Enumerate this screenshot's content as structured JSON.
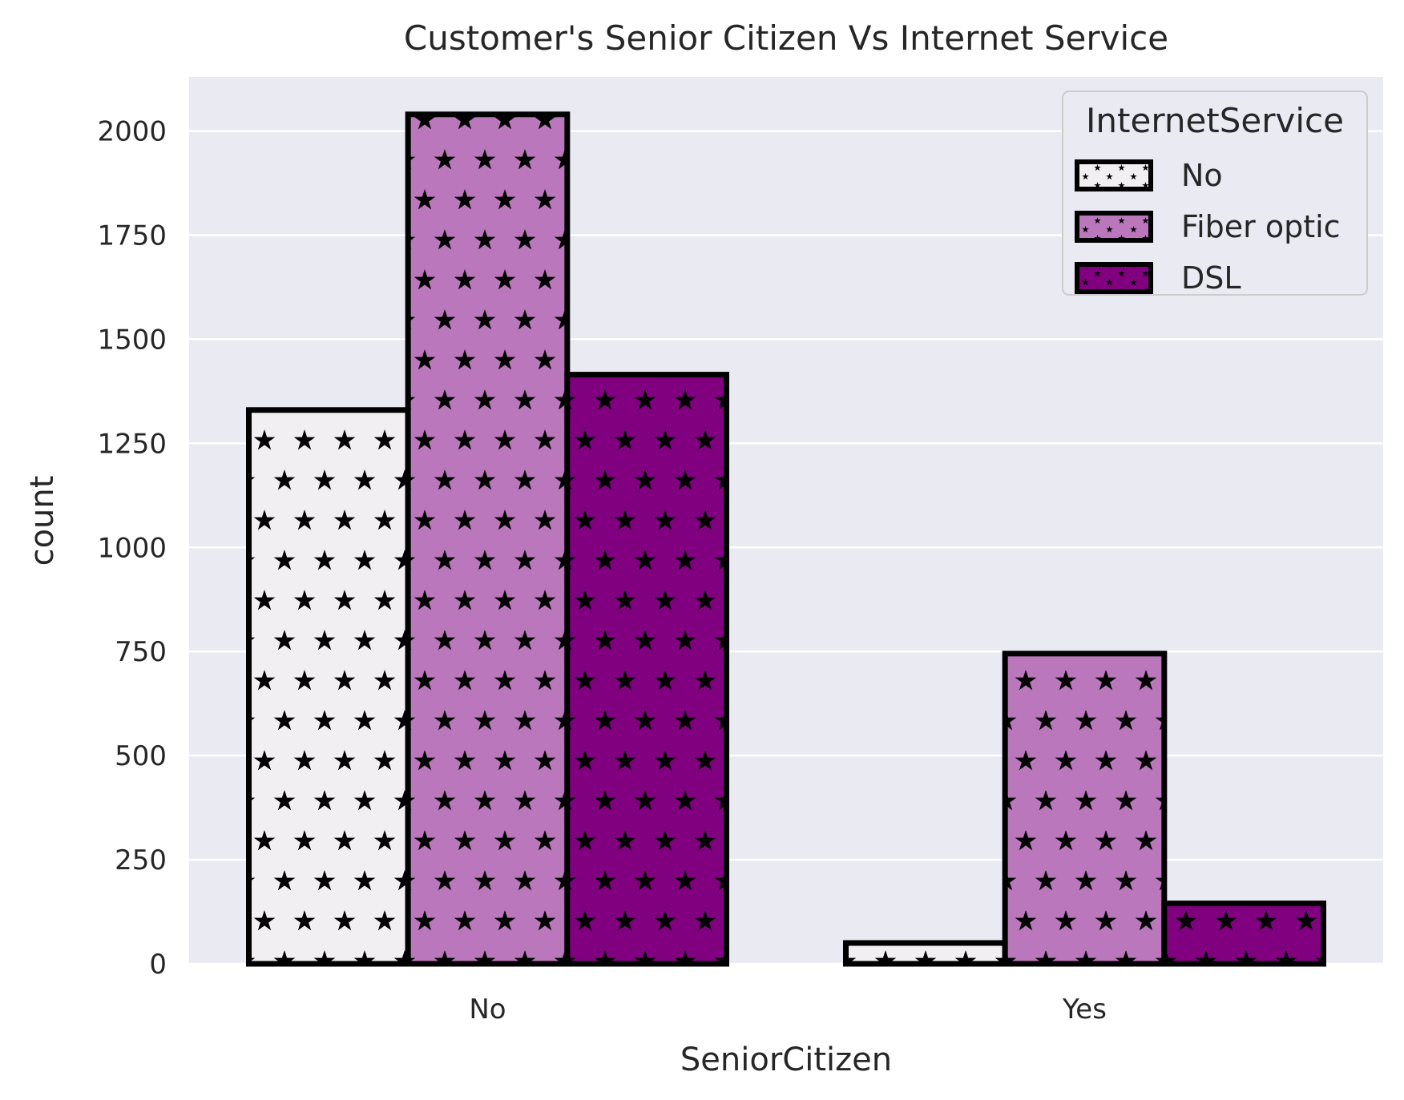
{
  "chart_data": {
    "type": "bar",
    "title": "Customer's Senior Citizen Vs Internet Service",
    "xlabel": "SeniorCitizen",
    "ylabel": "count",
    "categories": [
      "No",
      "Yes"
    ],
    "series": [
      {
        "name": "No",
        "values": [
          1330,
          50
        ],
        "color": "#f2eff2"
      },
      {
        "name": "Fiber optic",
        "values": [
          2040,
          745
        ],
        "color": "#bb77bb"
      },
      {
        "name": "DSL",
        "values": [
          1415,
          145
        ],
        "color": "#800080"
      }
    ],
    "ylim": [
      0,
      2130
    ],
    "yticks": [
      0,
      250,
      500,
      750,
      1000,
      1250,
      1500,
      1750,
      2000
    ],
    "grid": true,
    "legend": {
      "title": "InternetService",
      "placement": "top-right"
    },
    "hatch": "star",
    "background_color": "#eaeaf2",
    "edge_color": "#000000"
  }
}
